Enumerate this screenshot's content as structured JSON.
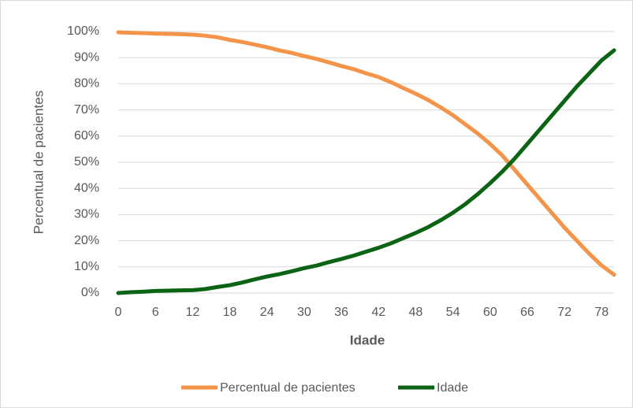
{
  "chart_data": {
    "type": "line",
    "x_label": "Idade",
    "y_label": "Percentual de pacientes",
    "x": [
      0,
      2,
      4,
      6,
      8,
      10,
      12,
      14,
      16,
      18,
      20,
      22,
      24,
      26,
      28,
      30,
      32,
      34,
      36,
      38,
      40,
      42,
      44,
      46,
      48,
      50,
      52,
      54,
      56,
      58,
      60,
      62,
      64,
      66,
      68,
      70,
      72,
      74,
      76,
      78,
      80
    ],
    "series": [
      {
        "name": "Percentual de pacientes",
        "color": "#f4944a",
        "values": [
          99.7,
          99.5,
          99.4,
          99.2,
          99.1,
          99,
          98.8,
          98.4,
          97.8,
          96.8,
          96,
          95,
          94,
          92.8,
          91.8,
          90.6,
          89.5,
          88.2,
          86.8,
          85.6,
          84,
          82.6,
          80.6,
          78.4,
          76.2,
          73.8,
          71,
          68,
          64.5,
          61,
          57,
          52.5,
          47,
          41.5,
          36,
          30.5,
          25,
          20,
          15,
          10.5,
          7
        ]
      },
      {
        "name": "Idade",
        "color": "#0b6414",
        "values": [
          0,
          0.3,
          0.5,
          0.8,
          0.9,
          1,
          1.1,
          1.5,
          2.3,
          3,
          4,
          5.2,
          6.3,
          7.2,
          8.3,
          9.5,
          10.5,
          11.8,
          13,
          14.3,
          15.8,
          17.3,
          19,
          21,
          23,
          25.2,
          27.8,
          30.7,
          34,
          37.8,
          42,
          46.5,
          51.5,
          57,
          62.5,
          68,
          73.5,
          79,
          84,
          89,
          92.8
        ]
      }
    ],
    "xlim": [
      0,
      80
    ],
    "xticks": [
      0,
      6,
      12,
      18,
      24,
      30,
      36,
      42,
      48,
      54,
      60,
      66,
      72,
      78
    ],
    "ylim": [
      0,
      100
    ],
    "yticks": [
      {
        "value": 0,
        "label": "0%"
      },
      {
        "value": 10,
        "label": "10%"
      },
      {
        "value": 20,
        "label": "20%"
      },
      {
        "value": 30,
        "label": "30%"
      },
      {
        "value": 40,
        "label": "40%"
      },
      {
        "value": 50,
        "label": "50%"
      },
      {
        "value": 60,
        "label": "60%"
      },
      {
        "value": 70,
        "label": "70%"
      },
      {
        "value": 80,
        "label": "80%"
      },
      {
        "value": 90,
        "label": "90%"
      },
      {
        "value": 100,
        "label": "100%"
      }
    ],
    "grid": true,
    "legend": "bottom"
  }
}
